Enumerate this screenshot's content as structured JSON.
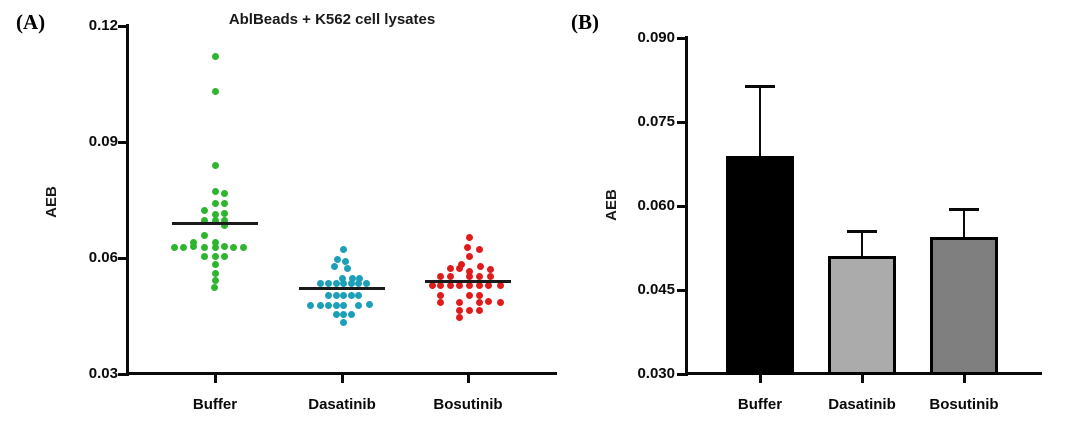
{
  "panels": {
    "a": {
      "label": "(A)",
      "title": "AblBeads + K562 cell lysates",
      "ylabel": "AEB"
    },
    "b": {
      "label": "(B)",
      "ylabel": "AEB"
    }
  },
  "chart_data": [
    {
      "type": "scatter",
      "panel": "A",
      "title": "AblBeads + K562 cell lysates",
      "ylabel": "AEB",
      "ylim": [
        0.03,
        0.12
      ],
      "yticks": [
        0.12,
        0.09,
        0.06,
        0.03
      ],
      "ytick_labels": [
        "0.12",
        "0.09",
        "0.06",
        "0.03"
      ],
      "categories": [
        "Buffer",
        "Dasatinib",
        "Bosutinib"
      ],
      "grid": false,
      "series": [
        {
          "name": "Buffer",
          "color": "#2db52d",
          "median": 0.069,
          "points": [
            [
              0,
              0.112
            ],
            [
              0,
              0.103
            ],
            [
              0,
              0.084
            ],
            [
              0,
              0.0771
            ],
            [
              9,
              0.0768
            ],
            [
              0,
              0.0742
            ],
            [
              9,
              0.0742
            ],
            [
              -11,
              0.0722
            ],
            [
              0,
              0.0712
            ],
            [
              9,
              0.0714
            ],
            [
              -11,
              0.0696
            ],
            [
              0,
              0.0696
            ],
            [
              9,
              0.0698
            ],
            [
              9,
              0.0683
            ],
            [
              -11,
              0.0659
            ],
            [
              -22,
              0.0639
            ],
            [
              0,
              0.0639
            ],
            [
              -41,
              0.0628
            ],
            [
              -32,
              0.0628
            ],
            [
              -22,
              0.063
            ],
            [
              -11,
              0.0628
            ],
            [
              0,
              0.0628
            ],
            [
              9,
              0.063
            ],
            [
              18,
              0.0628
            ],
            [
              28,
              0.0628
            ],
            [
              -11,
              0.0605
            ],
            [
              0,
              0.0605
            ],
            [
              9,
              0.0605
            ],
            [
              0,
              0.0582
            ],
            [
              0,
              0.0561
            ],
            [
              0,
              0.0543
            ],
            [
              -1,
              0.0525
            ]
          ]
        },
        {
          "name": "Dasatinib",
          "color": "#1c9fb8",
          "median": 0.052,
          "points": [
            [
              1,
              0.0621
            ],
            [
              -5,
              0.0595
            ],
            [
              3,
              0.0592
            ],
            [
              -8,
              0.0579
            ],
            [
              5,
              0.0574
            ],
            [
              0,
              0.0548
            ],
            [
              10,
              0.0548
            ],
            [
              17,
              0.0546
            ],
            [
              -22,
              0.0533
            ],
            [
              -14,
              0.0533
            ],
            [
              -6,
              0.0533
            ],
            [
              1,
              0.0533
            ],
            [
              9,
              0.0533
            ],
            [
              16,
              0.0533
            ],
            [
              24,
              0.0535
            ],
            [
              -14,
              0.0504
            ],
            [
              -6,
              0.0504
            ],
            [
              1,
              0.0504
            ],
            [
              9,
              0.0504
            ],
            [
              16,
              0.0504
            ],
            [
              -32,
              0.0478
            ],
            [
              -22,
              0.0478
            ],
            [
              -14,
              0.0478
            ],
            [
              -6,
              0.0478
            ],
            [
              1,
              0.0478
            ],
            [
              16,
              0.0478
            ],
            [
              27,
              0.048
            ],
            [
              -6,
              0.0453
            ],
            [
              1,
              0.0453
            ],
            [
              9,
              0.0453
            ],
            [
              1,
              0.0432
            ]
          ]
        },
        {
          "name": "Bosutinib",
          "color": "#e01b1b",
          "median": 0.054,
          "points": [
            [
              1,
              0.0652
            ],
            [
              -1,
              0.0626
            ],
            [
              11,
              0.0623
            ],
            [
              1,
              0.0603
            ],
            [
              -7,
              0.0584
            ],
            [
              12,
              0.0577
            ],
            [
              -18,
              0.0572
            ],
            [
              -9,
              0.0574
            ],
            [
              1,
              0.0564
            ],
            [
              22,
              0.0569
            ],
            [
              -28,
              0.0551
            ],
            [
              -18,
              0.0551
            ],
            [
              1,
              0.0551
            ],
            [
              11,
              0.0551
            ],
            [
              22,
              0.0553
            ],
            [
              -36,
              0.0528
            ],
            [
              -28,
              0.0528
            ],
            [
              -18,
              0.0528
            ],
            [
              -9,
              0.0528
            ],
            [
              1,
              0.0528
            ],
            [
              11,
              0.0528
            ],
            [
              20,
              0.0528
            ],
            [
              32,
              0.053
            ],
            [
              -28,
              0.0504
            ],
            [
              1,
              0.0504
            ],
            [
              11,
              0.0504
            ],
            [
              -28,
              0.0486
            ],
            [
              -9,
              0.0486
            ],
            [
              11,
              0.0486
            ],
            [
              20,
              0.0488
            ],
            [
              32,
              0.0486
            ],
            [
              -9,
              0.0465
            ],
            [
              1,
              0.0465
            ],
            [
              11,
              0.0465
            ],
            [
              -9,
              0.0445
            ]
          ]
        }
      ]
    },
    {
      "type": "bar",
      "panel": "B",
      "ylabel": "AEB",
      "ylim": [
        0.03,
        0.09
      ],
      "yticks": [
        0.09,
        0.075,
        0.06,
        0.045,
        0.03
      ],
      "ytick_labels": [
        "0.090",
        "0.075",
        "0.060",
        "0.045",
        "0.030"
      ],
      "categories": [
        "Buffer",
        "Dasatinib",
        "Bosutinib"
      ],
      "values": [
        0.069,
        0.051,
        0.0545
      ],
      "errors_up": [
        0.0125,
        0.0045,
        0.005
      ],
      "bar_colors": [
        "#000000",
        "#ababab",
        "#7f7f7f"
      ],
      "grid": false
    }
  ]
}
